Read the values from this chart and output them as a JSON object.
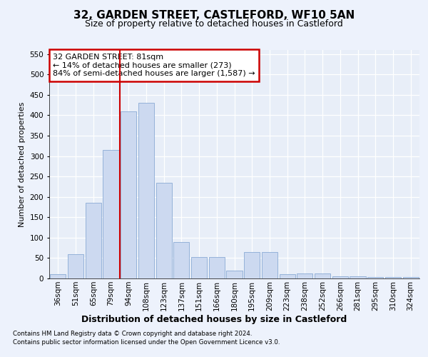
{
  "title1": "32, GARDEN STREET, CASTLEFORD, WF10 5AN",
  "title2": "Size of property relative to detached houses in Castleford",
  "xlabel": "Distribution of detached houses by size in Castleford",
  "ylabel": "Number of detached properties",
  "categories": [
    "36sqm",
    "51sqm",
    "65sqm",
    "79sqm",
    "94sqm",
    "108sqm",
    "123sqm",
    "137sqm",
    "151sqm",
    "166sqm",
    "180sqm",
    "195sqm",
    "209sqm",
    "223sqm",
    "238sqm",
    "252sqm",
    "266sqm",
    "281sqm",
    "295sqm",
    "310sqm",
    "324sqm"
  ],
  "values": [
    10,
    60,
    185,
    315,
    410,
    430,
    235,
    90,
    52,
    52,
    20,
    65,
    65,
    10,
    12,
    12,
    5,
    5,
    3,
    3,
    3
  ],
  "bar_color": "#ccd9f0",
  "bar_edge_color": "#8aaad4",
  "vline_pos": 3.5,
  "vline_color": "#cc0000",
  "annotation_text": "32 GARDEN STREET: 81sqm\n← 14% of detached houses are smaller (273)\n84% of semi-detached houses are larger (1,587) →",
  "annotation_box_color": "#cc0000",
  "ylim": [
    0,
    560
  ],
  "yticks": [
    0,
    50,
    100,
    150,
    200,
    250,
    300,
    350,
    400,
    450,
    500,
    550
  ],
  "footer1": "Contains HM Land Registry data © Crown copyright and database right 2024.",
  "footer2": "Contains public sector information licensed under the Open Government Licence v3.0.",
  "bg_color": "#edf2fc",
  "plot_bg_color": "#e8eef8",
  "title1_fontsize": 11,
  "title2_fontsize": 9,
  "ylabel_fontsize": 8,
  "xlabel_fontsize": 9,
  "tick_fontsize": 7.5,
  "annot_fontsize": 8
}
